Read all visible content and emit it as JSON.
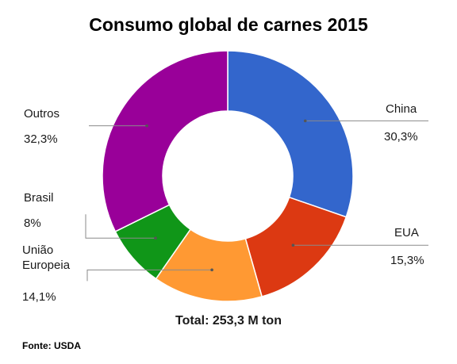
{
  "chart_data": {
    "type": "pie",
    "title": "Consumo global de carnes 2015",
    "total_label": "Total: 253,3 M ton",
    "source": "Fonte: USDA",
    "slices": [
      {
        "name": "China",
        "value": 30.3,
        "value_label": "30,3%",
        "color": "#3366cc"
      },
      {
        "name": "EUA",
        "value": 15.3,
        "value_label": "15,3%",
        "color": "#dc3912"
      },
      {
        "name": "União Europeia",
        "value": 14.1,
        "value_label": "14,1%",
        "color": "#ff9933"
      },
      {
        "name": "Brasil",
        "value": 8,
        "value_label": "8%",
        "color": "#109618"
      },
      {
        "name": "Outros",
        "value": 32.3,
        "value_label": "32,3%",
        "color": "#990099"
      }
    ]
  }
}
